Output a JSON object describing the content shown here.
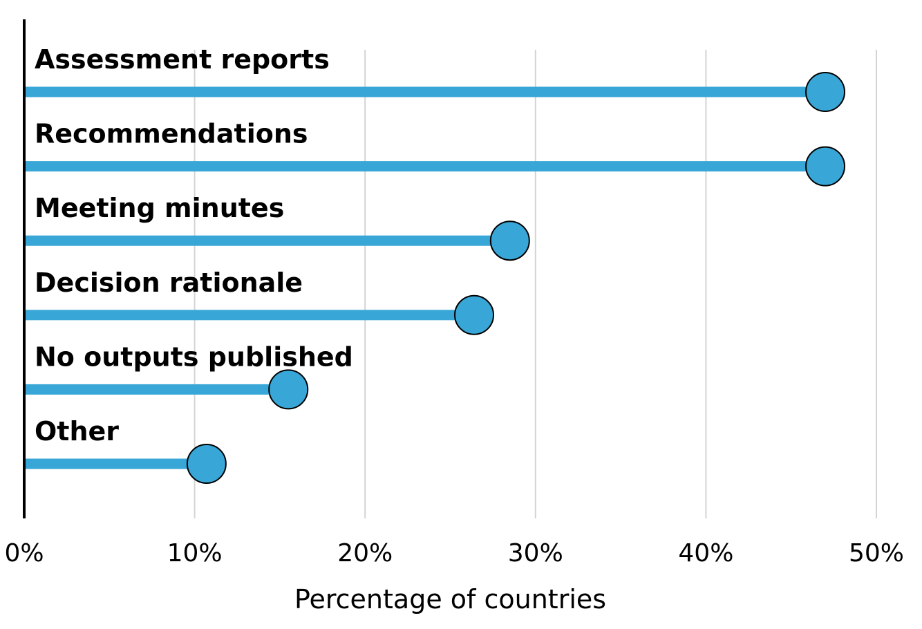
{
  "chart_data": {
    "type": "lollipop",
    "categories": [
      "Assessment reports",
      "Recommendations",
      "Meeting minutes",
      "Decision rationale",
      "No outputs published",
      "Other"
    ],
    "values": [
      47,
      47,
      28.5,
      26.4,
      15.5,
      10.7
    ],
    "xlabel": "Percentage of countries",
    "ylabel": "",
    "title": "",
    "xlim": [
      0,
      50
    ],
    "xticks": [
      0,
      10,
      20,
      30,
      40,
      50
    ],
    "xtick_labels": [
      "0%",
      "10%",
      "20%",
      "30%",
      "40%",
      "50%"
    ],
    "grid": "vertical",
    "legend": "none",
    "colors": {
      "stem": "#38a6d6",
      "dot": "#38a6d6",
      "dot_outline": "#000000",
      "grid": "#d4d4d4",
      "axis": "#000000"
    }
  }
}
